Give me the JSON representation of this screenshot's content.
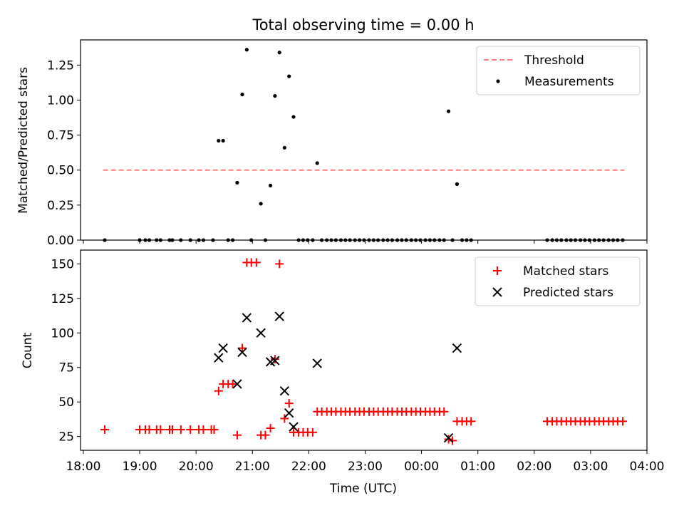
{
  "title": "Total observing time = 0.00 h",
  "xlabel": "Time (UTC)",
  "colors": {
    "threshold": "#ff7f7f",
    "measurement": "#000000",
    "matched": "#ff0000",
    "predicted": "#000000"
  },
  "chart_data": [
    {
      "type": "scatter",
      "title": "Total observing time = 0.00 h",
      "ylabel": "Matched/Predicted stars",
      "xlim": [
        -0.05,
        10.0
      ],
      "ylim": [
        0.0,
        1.43
      ],
      "x_ticks": [
        0,
        1,
        2,
        3,
        4,
        5,
        6,
        7,
        8,
        9,
        10
      ],
      "y_ticks": [
        0.0,
        0.25,
        0.5,
        0.75,
        1.0,
        1.25
      ],
      "y_tick_labels": [
        "0.00",
        "0.25",
        "0.50",
        "0.75",
        "1.00",
        "1.25"
      ],
      "legend": {
        "position": "upper right",
        "entries": [
          "Threshold",
          "Measurements"
        ]
      },
      "series": [
        {
          "name": "Threshold",
          "type": "line",
          "style": "dashed",
          "x": [
            0.35,
            9.6
          ],
          "y": [
            0.5,
            0.5
          ]
        },
        {
          "name": "Measurements",
          "type": "scatter",
          "points": [
            [
              0.38,
              0.0
            ],
            [
              1.0,
              0.0
            ],
            [
              1.1,
              0.0
            ],
            [
              1.17,
              0.0
            ],
            [
              1.3,
              0.0
            ],
            [
              1.37,
              0.0
            ],
            [
              1.53,
              0.0
            ],
            [
              1.58,
              0.0
            ],
            [
              1.73,
              0.0
            ],
            [
              1.9,
              0.0
            ],
            [
              2.05,
              0.0
            ],
            [
              2.13,
              0.0
            ],
            [
              2.3,
              0.0
            ],
            [
              2.4,
              0.71
            ],
            [
              2.48,
              0.71
            ],
            [
              2.57,
              0.0
            ],
            [
              2.65,
              0.0
            ],
            [
              2.73,
              0.41
            ],
            [
              2.82,
              1.04
            ],
            [
              2.9,
              1.36
            ],
            [
              2.98,
              0.0
            ],
            [
              3.15,
              0.26
            ],
            [
              3.23,
              0.0
            ],
            [
              3.32,
              0.39
            ],
            [
              3.4,
              1.03
            ],
            [
              3.48,
              1.34
            ],
            [
              3.57,
              0.66
            ],
            [
              3.65,
              1.17
            ],
            [
              3.73,
              0.88
            ],
            [
              3.82,
              0.0
            ],
            [
              3.9,
              0.0
            ],
            [
              3.98,
              0.0
            ],
            [
              4.07,
              0.0
            ],
            [
              4.15,
              0.55
            ],
            [
              4.23,
              0.0
            ],
            [
              4.32,
              0.0
            ],
            [
              4.4,
              0.0
            ],
            [
              4.48,
              0.0
            ],
            [
              4.57,
              0.0
            ],
            [
              4.65,
              0.0
            ],
            [
              4.73,
              0.0
            ],
            [
              4.82,
              0.0
            ],
            [
              4.9,
              0.0
            ],
            [
              4.98,
              0.0
            ],
            [
              5.07,
              0.0
            ],
            [
              5.15,
              0.0
            ],
            [
              5.23,
              0.0
            ],
            [
              5.32,
              0.0
            ],
            [
              5.4,
              0.0
            ],
            [
              5.48,
              0.0
            ],
            [
              5.57,
              0.0
            ],
            [
              5.65,
              0.0
            ],
            [
              5.73,
              0.0
            ],
            [
              5.82,
              0.0
            ],
            [
              5.9,
              0.0
            ],
            [
              5.98,
              0.0
            ],
            [
              6.07,
              0.0
            ],
            [
              6.15,
              0.0
            ],
            [
              6.23,
              0.0
            ],
            [
              6.32,
              0.0
            ],
            [
              6.4,
              0.0
            ],
            [
              6.48,
              0.92
            ],
            [
              6.55,
              0.0
            ],
            [
              6.63,
              0.4
            ],
            [
              6.72,
              0.0
            ],
            [
              6.8,
              0.0
            ],
            [
              6.88,
              0.0
            ],
            [
              8.23,
              0.0
            ],
            [
              8.32,
              0.0
            ],
            [
              8.4,
              0.0
            ],
            [
              8.48,
              0.0
            ],
            [
              8.57,
              0.0
            ],
            [
              8.65,
              0.0
            ],
            [
              8.73,
              0.0
            ],
            [
              8.82,
              0.0
            ],
            [
              8.9,
              0.0
            ],
            [
              8.98,
              0.0
            ],
            [
              9.07,
              0.0
            ],
            [
              9.15,
              0.0
            ],
            [
              9.23,
              0.0
            ],
            [
              9.32,
              0.0
            ],
            [
              9.4,
              0.0
            ],
            [
              9.48,
              0.0
            ],
            [
              9.57,
              0.0
            ]
          ]
        }
      ]
    },
    {
      "type": "scatter",
      "xlabel": "Time (UTC)",
      "ylabel": "Count",
      "xlim": [
        -0.05,
        10.0
      ],
      "ylim": [
        15,
        160
      ],
      "x_ticks": [
        0,
        1,
        2,
        3,
        4,
        5,
        6,
        7,
        8,
        9,
        10
      ],
      "x_tick_labels": [
        "18:00",
        "19:00",
        "20:00",
        "21:00",
        "22:00",
        "23:00",
        "00:00",
        "01:00",
        "02:00",
        "03:00",
        "04:00"
      ],
      "y_ticks": [
        25,
        50,
        75,
        100,
        125,
        150
      ],
      "y_tick_labels": [
        "25",
        "50",
        "75",
        "100",
        "125",
        "150"
      ],
      "legend": {
        "position": "upper right",
        "entries": [
          "Matched stars",
          "Predicted stars"
        ]
      },
      "series": [
        {
          "name": "Matched stars",
          "marker": "+",
          "points": [
            [
              0.38,
              30
            ],
            [
              1.0,
              30
            ],
            [
              1.1,
              30
            ],
            [
              1.17,
              30
            ],
            [
              1.3,
              30
            ],
            [
              1.37,
              30
            ],
            [
              1.53,
              30
            ],
            [
              1.58,
              30
            ],
            [
              1.73,
              30
            ],
            [
              1.9,
              30
            ],
            [
              2.05,
              30
            ],
            [
              2.13,
              30
            ],
            [
              2.27,
              30
            ],
            [
              2.32,
              30
            ],
            [
              2.4,
              58
            ],
            [
              2.48,
              63
            ],
            [
              2.57,
              63
            ],
            [
              2.65,
              63
            ],
            [
              2.73,
              26
            ],
            [
              2.82,
              89
            ],
            [
              2.9,
              151
            ],
            [
              2.98,
              151
            ],
            [
              3.07,
              151
            ],
            [
              3.15,
              26
            ],
            [
              3.23,
              26
            ],
            [
              3.32,
              31
            ],
            [
              3.4,
              81
            ],
            [
              3.48,
              150
            ],
            [
              3.57,
              38
            ],
            [
              3.65,
              49
            ],
            [
              3.73,
              28
            ],
            [
              3.82,
              28
            ],
            [
              3.9,
              28
            ],
            [
              3.98,
              28
            ],
            [
              4.07,
              28
            ],
            [
              4.15,
              43
            ],
            [
              4.23,
              43
            ],
            [
              4.32,
              43
            ],
            [
              4.4,
              43
            ],
            [
              4.48,
              43
            ],
            [
              4.57,
              43
            ],
            [
              4.65,
              43
            ],
            [
              4.73,
              43
            ],
            [
              4.82,
              43
            ],
            [
              4.9,
              43
            ],
            [
              4.98,
              43
            ],
            [
              5.07,
              43
            ],
            [
              5.15,
              43
            ],
            [
              5.23,
              43
            ],
            [
              5.32,
              43
            ],
            [
              5.4,
              43
            ],
            [
              5.48,
              43
            ],
            [
              5.57,
              43
            ],
            [
              5.65,
              43
            ],
            [
              5.73,
              43
            ],
            [
              5.82,
              43
            ],
            [
              5.9,
              43
            ],
            [
              5.98,
              43
            ],
            [
              6.07,
              43
            ],
            [
              6.15,
              43
            ],
            [
              6.23,
              43
            ],
            [
              6.32,
              43
            ],
            [
              6.4,
              43
            ],
            [
              6.48,
              23
            ],
            [
              6.55,
              22
            ],
            [
              6.63,
              36
            ],
            [
              6.72,
              36
            ],
            [
              6.8,
              36
            ],
            [
              6.88,
              36
            ],
            [
              8.23,
              36
            ],
            [
              8.32,
              36
            ],
            [
              8.4,
              36
            ],
            [
              8.48,
              36
            ],
            [
              8.57,
              36
            ],
            [
              8.65,
              36
            ],
            [
              8.73,
              36
            ],
            [
              8.82,
              36
            ],
            [
              8.9,
              36
            ],
            [
              8.98,
              36
            ],
            [
              9.07,
              36
            ],
            [
              9.15,
              36
            ],
            [
              9.23,
              36
            ],
            [
              9.32,
              36
            ],
            [
              9.4,
              36
            ],
            [
              9.48,
              36
            ],
            [
              9.57,
              36
            ]
          ]
        },
        {
          "name": "Predicted stars",
          "marker": "x",
          "points": [
            [
              2.4,
              82
            ],
            [
              2.48,
              89
            ],
            [
              2.73,
              63
            ],
            [
              2.82,
              86
            ],
            [
              2.9,
              111
            ],
            [
              3.15,
              100
            ],
            [
              3.32,
              79
            ],
            [
              3.4,
              80
            ],
            [
              3.48,
              112
            ],
            [
              3.57,
              58
            ],
            [
              3.65,
              42
            ],
            [
              3.73,
              32
            ],
            [
              4.15,
              78
            ],
            [
              6.48,
              24
            ],
            [
              6.63,
              89
            ]
          ]
        }
      ]
    }
  ]
}
